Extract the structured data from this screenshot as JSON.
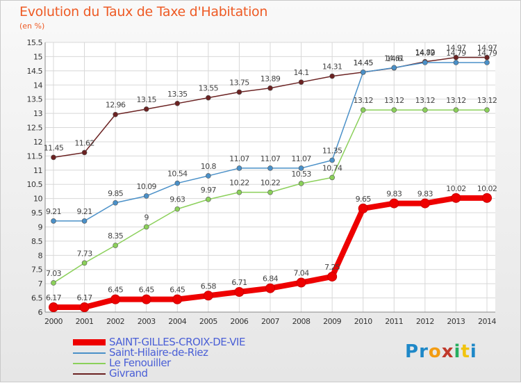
{
  "title": "Evolution du Taux de Taxe d'Habitation",
  "unit_label": "(en %)",
  "logo": {
    "letters": [
      "P",
      "r",
      "o",
      "x",
      "i",
      "t",
      "i"
    ],
    "colors": [
      "#1e88c8",
      "#1e88c8",
      "#f39c12",
      "#c0392b",
      "#27ae60",
      "#f1c40f",
      "#1e88c8"
    ]
  },
  "chart_data": {
    "type": "line",
    "title": "Evolution du Taux de Taxe d'Habitation",
    "ylabel": "(en %)",
    "xlabel": "",
    "ylim": [
      6,
      15.5
    ],
    "y_ticks": [
      "6",
      "6.5",
      "7",
      "7.5",
      "8",
      "8.5",
      "9",
      "9.5",
      "10",
      "10.5",
      "11",
      "11.5",
      "12",
      "12.5",
      "13",
      "13.5",
      "14",
      "14.5",
      "15",
      "15.5"
    ],
    "x": [
      "2000",
      "2001",
      "2002",
      "2003",
      "2004",
      "2005",
      "2006",
      "2007",
      "2008",
      "2009",
      "2010",
      "2011",
      "2012",
      "2013",
      "2014"
    ],
    "grid": true,
    "legend_position": "bottom-left",
    "series": [
      {
        "name": "SAINT-GILLES-CROIX-DE-VIE",
        "color": "#ee0000",
        "values": [
          6.17,
          6.17,
          6.45,
          6.45,
          6.45,
          6.58,
          6.71,
          6.84,
          7.04,
          7.25,
          9.65,
          9.83,
          9.83,
          10.02,
          10.02
        ],
        "labels": [
          "6.17",
          "6.17",
          "6.45",
          "6.45",
          "6.45",
          "6.58",
          "6.71",
          "6.84",
          "7.04",
          "7.25",
          "9.65",
          "9.83",
          "9.83",
          "10.02",
          "10.02"
        ]
      },
      {
        "name": "Saint-Hilaire-de-Riez",
        "color": "#4a90c8",
        "values": [
          9.21,
          9.21,
          9.85,
          10.09,
          10.54,
          10.8,
          11.07,
          11.07,
          11.07,
          11.35,
          14.45,
          14.61,
          14.79,
          14.79,
          14.79
        ],
        "labels": [
          "9.21",
          "9.21",
          "9.85",
          "10.09",
          "10.54",
          "10.8",
          "11.07",
          "11.07",
          "11.07",
          "11.35",
          "14.45",
          "14.61",
          "14.79",
          "14.79",
          "14.79"
        ]
      },
      {
        "name": "Le Fenouiller",
        "color": "#8bd05a",
        "values": [
          7.03,
          7.73,
          8.35,
          9,
          9.63,
          9.97,
          10.22,
          10.22,
          10.53,
          10.74,
          13.12,
          13.12,
          13.12,
          13.12,
          13.12
        ],
        "labels": [
          "7.03",
          "7.73",
          "8.35",
          "9",
          "9.63",
          "9.97",
          "10.22",
          "10.22",
          "10.53",
          "10.74",
          "13.12",
          "13.12",
          "13.12",
          "13.12",
          "13.12"
        ]
      },
      {
        "name": "Givrand",
        "color": "#6b2222",
        "values": [
          11.45,
          11.62,
          12.96,
          13.15,
          13.35,
          13.55,
          13.75,
          13.89,
          14.1,
          14.31,
          14.45,
          14.6,
          14.82,
          14.97,
          14.97
        ],
        "labels": [
          "11.45",
          "11.62",
          "12.96",
          "13.15",
          "13.35",
          "13.55",
          "13.75",
          "13.89",
          "14.1",
          "14.31",
          "14.45",
          "14.6",
          "14.82",
          "14.97",
          "14.97"
        ]
      }
    ]
  }
}
